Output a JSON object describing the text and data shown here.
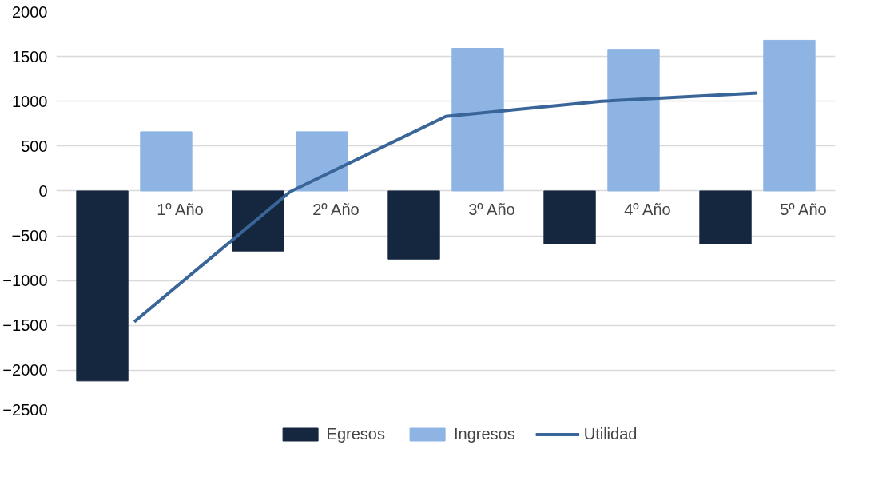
{
  "chart_data": {
    "type": "bar",
    "categories": [
      "1º Año",
      "2º Año",
      "3º Año",
      "4º Año",
      "5º Año"
    ],
    "series": [
      {
        "name": "Egresos",
        "color": "#14273f",
        "values": [
          -2120,
          -670,
          -760,
          -590,
          -590
        ]
      },
      {
        "name": "Ingresos",
        "color": "#8eb4e3",
        "values": [
          660,
          660,
          1590,
          1580,
          1680
        ]
      },
      {
        "name": "Utilidad",
        "type": "line",
        "color": "#3a6598",
        "values": [
          -1460,
          -10,
          830,
          1000,
          1090
        ]
      }
    ],
    "ylim": [
      -2500,
      2000
    ],
    "yticks": [
      -2500,
      -2000,
      -1500,
      -1000,
      -500,
      0,
      500,
      1000,
      1500,
      2000
    ],
    "grid": "y",
    "legend": "bottom"
  }
}
